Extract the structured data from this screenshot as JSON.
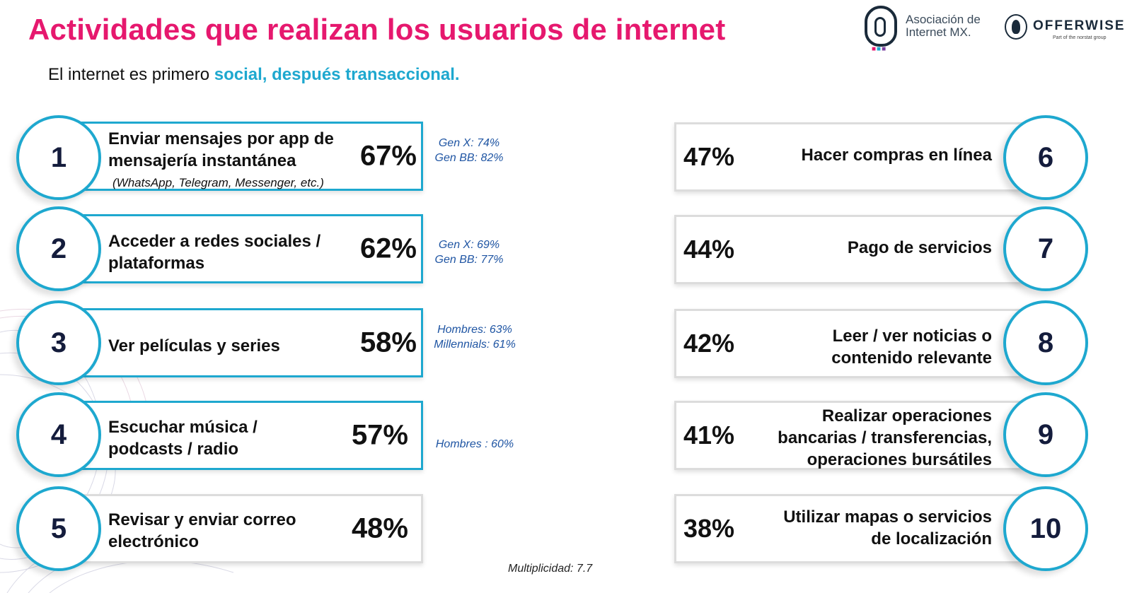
{
  "header": {
    "title": "Actividades que realizan los usuarios de internet",
    "subtitle_prefix": "El internet es primero ",
    "subtitle_highlight": "social, después transaccional."
  },
  "logos": {
    "amx_line1": "Asociación de",
    "amx_line2": "Internet MX.",
    "offerwise_name": "OFFERWISE",
    "offerwise_tag": "Part of the norstat group"
  },
  "activities": [
    {
      "rank": "1",
      "label_line1": "Enviar mensajes por app de",
      "label_line2": "mensajería instantánea",
      "sublabel": "(WhatsApp, Telegram, Messenger, etc.)",
      "percent": "67%",
      "note_line1": "Gen X: 74%",
      "note_line2": "Gen BB: 82%",
      "value": 67
    },
    {
      "rank": "2",
      "label_line1": "Acceder a redes sociales /",
      "label_line2": "plataformas",
      "percent": "62%",
      "note_line1": "Gen X: 69%",
      "note_line2": "Gen BB: 77%",
      "value": 62
    },
    {
      "rank": "3",
      "label_line1": "Ver películas y series",
      "percent": "58%",
      "note_line1": "Hombres: 63%",
      "note_line2": "Millennials: 61%",
      "value": 58
    },
    {
      "rank": "4",
      "label_line1": "Escuchar música /",
      "label_line2": "podcasts / radio",
      "percent": "57%",
      "note_line1": "Hombres : 60%",
      "value": 57
    },
    {
      "rank": "5",
      "label_line1": "Revisar y enviar correo",
      "label_line2": "electrónico",
      "percent": "48%",
      "value": 48
    },
    {
      "rank": "6",
      "label_line1": "Hacer compras en línea",
      "percent": "47%",
      "value": 47
    },
    {
      "rank": "7",
      "label_line1": "Pago de servicios",
      "percent": "44%",
      "value": 44
    },
    {
      "rank": "8",
      "label_line1": "Leer / ver noticias o",
      "label_line2": "contenido relevante",
      "percent": "42%",
      "value": 42
    },
    {
      "rank": "9",
      "label_line1": "Realizar operaciones",
      "label_line2": "bancarias / transferencias,",
      "label_line3": "operaciones bursátiles",
      "percent": "41%",
      "value": 41
    },
    {
      "rank": "10",
      "label_line1": "Utilizar mapas o servicios",
      "label_line2": "de localización",
      "percent": "38%",
      "value": 38
    }
  ],
  "footer": {
    "multiplicity": "Multiplicidad: 7.7"
  },
  "colors": {
    "title": "#e6186e",
    "accent": "#1ea8cf",
    "note": "#1f55a3",
    "card_border_gray": "#dcdcdc"
  }
}
